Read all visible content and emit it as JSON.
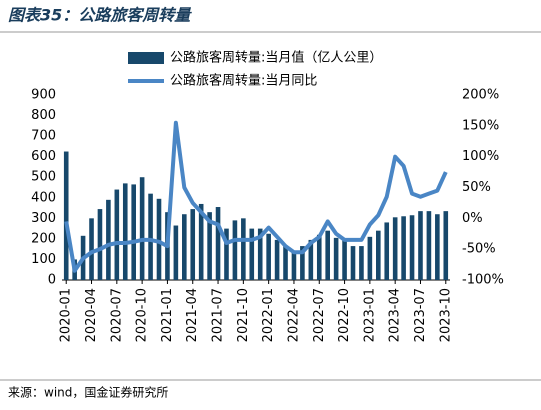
{
  "chart_data": {
    "type": "bar-line",
    "title": "图表35：公路旅客周转量",
    "source": "来源：wind，国金证券研究所",
    "categories": [
      "2020-01",
      null,
      null,
      "2020-04",
      null,
      null,
      "2020-07",
      null,
      null,
      "2020-10",
      null,
      null,
      "2021-01",
      null,
      null,
      "2021-04",
      null,
      null,
      "2021-07",
      null,
      null,
      "2021-10",
      null,
      null,
      "2022-01",
      null,
      null,
      "2022-04",
      null,
      null,
      "2022-07",
      null,
      null,
      "2022-10",
      null,
      null,
      "2023-01",
      null,
      null,
      "2023-04",
      null,
      null,
      "2023-07",
      null,
      null,
      "2023-10"
    ],
    "series": [
      {
        "name": "公路旅客周转量:当月值（亿人公里）",
        "type": "bar",
        "color": "#17486b",
        "values": [
          625,
          100,
          215,
          300,
          345,
          390,
          440,
          470,
          465,
          500,
          420,
          395,
          330,
          265,
          320,
          345,
          370,
          330,
          355,
          250,
          290,
          300,
          250,
          250,
          225,
          195,
          165,
          140,
          165,
          195,
          220,
          240,
          205,
          200,
          165,
          165,
          210,
          240,
          280,
          305,
          310,
          315,
          335,
          335,
          320,
          335
        ]
      },
      {
        "name": "公路旅客周转量:当月同比",
        "type": "line",
        "axis": "y2",
        "color": "#4a86c5",
        "values": [
          -5,
          -85,
          -65,
          -55,
          -50,
          -43,
          -40,
          -40,
          -38,
          -35,
          -35,
          -38,
          -45,
          155,
          50,
          25,
          10,
          -5,
          -10,
          -40,
          -35,
          -35,
          -35,
          -30,
          -15,
          -30,
          -45,
          -55,
          -55,
          -40,
          -30,
          -5,
          -25,
          -35,
          -35,
          -35,
          -10,
          5,
          35,
          100,
          85,
          40,
          35,
          40,
          45,
          75
        ]
      }
    ],
    "ylim": [
      0,
      900
    ],
    "yticks": [
      0,
      100,
      200,
      300,
      400,
      500,
      600,
      700,
      800,
      900
    ],
    "y2lim": [
      -100,
      200
    ],
    "y2ticks": [
      {
        "value": -100,
        "label": "-100%"
      },
      {
        "value": -50,
        "label": "-50%"
      },
      {
        "value": 0,
        "label": "0%"
      },
      {
        "value": 50,
        "label": "50%"
      },
      {
        "value": 100,
        "label": "100%"
      },
      {
        "value": 150,
        "label": "150%"
      },
      {
        "value": 200,
        "label": "200%"
      }
    ],
    "legend": "top"
  }
}
